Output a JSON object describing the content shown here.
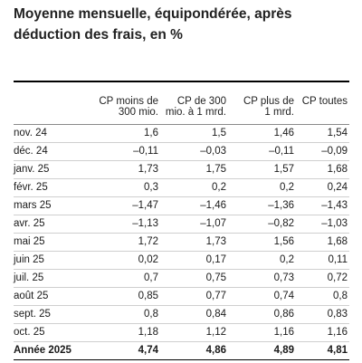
{
  "title": "Moyenne mensuelle, équipondérée, après déduction des frais, en %",
  "headers": {
    "col0": "",
    "col1": [
      "CP moins de",
      "300 mio."
    ],
    "col2": [
      "CP de 300",
      "mio. à 1 mrd."
    ],
    "col3": [
      "CP plus de",
      "1 mrd."
    ],
    "col4": [
      "CP toutes"
    ]
  },
  "rows": [
    {
      "label": "nov. 24",
      "v": [
        "1,6",
        "1,5",
        "1,46",
        "1,54"
      ]
    },
    {
      "label": "déc. 24",
      "v": [
        "–0,11",
        "–0,03",
        "–0,11",
        "–0,09"
      ]
    },
    {
      "label": "janv. 25",
      "v": [
        "1,73",
        "1,75",
        "1,57",
        "1,68"
      ]
    },
    {
      "label": "févr. 25",
      "v": [
        "0,3",
        "0,2",
        "0,2",
        "0,24"
      ]
    },
    {
      "label": "mars 25",
      "v": [
        "–1,47",
        "–1,46",
        "–1,36",
        "–1,43"
      ]
    },
    {
      "label": "avr. 25",
      "v": [
        "–1,13",
        "–1,07",
        "–0,82",
        "–1,03"
      ]
    },
    {
      "label": "mai 25",
      "v": [
        "1,72",
        "1,73",
        "1,56",
        "1,68"
      ]
    },
    {
      "label": "juin 25",
      "v": [
        "0,02",
        "0,17",
        "0,2",
        "0,11"
      ]
    },
    {
      "label": "juil. 25",
      "v": [
        "0,7",
        "0,75",
        "0,73",
        "0,72"
      ]
    },
    {
      "label": "août 25",
      "v": [
        "0,85",
        "0,77",
        "0,74",
        "0,8"
      ]
    },
    {
      "label": "sept. 25",
      "v": [
        "0,8",
        "0,84",
        "0,86",
        "0,83"
      ]
    },
    {
      "label": "oct. 25",
      "v": [
        "1,18",
        "1,12",
        "1,16",
        "1,16"
      ]
    }
  ],
  "total": {
    "label": "Année 2025",
    "v": [
      "4,74",
      "4,86",
      "4,89",
      "4,81"
    ]
  }
}
